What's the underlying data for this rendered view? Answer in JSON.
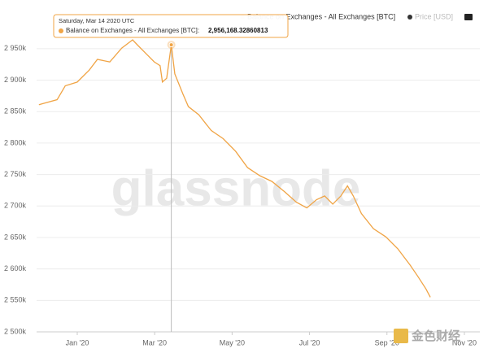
{
  "chart_data": {
    "type": "line",
    "watermark": "glassnode",
    "legend": [
      {
        "name": "Balance on Exchanges - All Exchanges [BTC]",
        "color": "#f0a445"
      },
      {
        "name": "Price [USD]",
        "color": "#333333"
      }
    ],
    "tooltip": {
      "date": "Saturday, Mar 14 2020 UTC",
      "label": "Balance on Exchanges - All Exchanges [BTC]:",
      "value": "2,956,168.32860813",
      "x": 2.43
    },
    "corner_logo": "金色财经",
    "series": [
      {
        "name": "Balance on Exchanges - All Exchanges [BTC]",
        "color": "#f0a445",
        "x": [
          -0.99,
          -0.52,
          -0.31,
          0,
          0.31,
          0.52,
          0.84,
          1.15,
          1.43,
          1.57,
          1.78,
          1.99,
          2.14,
          2.2,
          2.31,
          2.43,
          2.52,
          2.73,
          2.87,
          3.14,
          3.46,
          3.77,
          4.09,
          4.4,
          4.72,
          5.03,
          5.35,
          5.66,
          5.93,
          6.18,
          6.39,
          6.6,
          6.81,
          6.98,
          7.13,
          7.34,
          7.65,
          7.97,
          8.28,
          8.6,
          8.81,
          9.01,
          9.12
        ],
        "values": [
          2861,
          2869,
          2891,
          2897,
          2916,
          2933,
          2929,
          2951,
          2964,
          2955,
          2942,
          2929,
          2923,
          2897,
          2903,
          2956.17,
          2910,
          2878,
          2858,
          2845,
          2820,
          2807,
          2787,
          2761,
          2748,
          2739,
          2723,
          2706,
          2697,
          2710,
          2716,
          2703,
          2716,
          2732,
          2716,
          2688,
          2664,
          2651,
          2632,
          2606,
          2587,
          2568,
          2555
        ]
      }
    ],
    "xlim": [
      -1.05,
      10.4
    ],
    "xticks": [
      {
        "value": 0,
        "label": "Jan '20"
      },
      {
        "value": 2,
        "label": "Mar '20"
      },
      {
        "value": 4,
        "label": "May '20"
      },
      {
        "value": 6,
        "label": "Jul '20"
      },
      {
        "value": 8,
        "label": "Sep '20"
      },
      {
        "value": 10,
        "label": "Nov '20"
      }
    ],
    "ylim": [
      2500,
      3008
    ],
    "yticks": [
      {
        "value": 2500,
        "label": "2 500k"
      },
      {
        "value": 2550,
        "label": "2 550k"
      },
      {
        "value": 2600,
        "label": "2 600k"
      },
      {
        "value": 2650,
        "label": "2 650k"
      },
      {
        "value": 2700,
        "label": "2 700k"
      },
      {
        "value": 2750,
        "label": "2 750k"
      },
      {
        "value": 2800,
        "label": "2 800k"
      },
      {
        "value": 2850,
        "label": "2 850k"
      },
      {
        "value": 2900,
        "label": "2 900k"
      },
      {
        "value": 2950,
        "label": "2 950k"
      }
    ],
    "grid": true
  }
}
